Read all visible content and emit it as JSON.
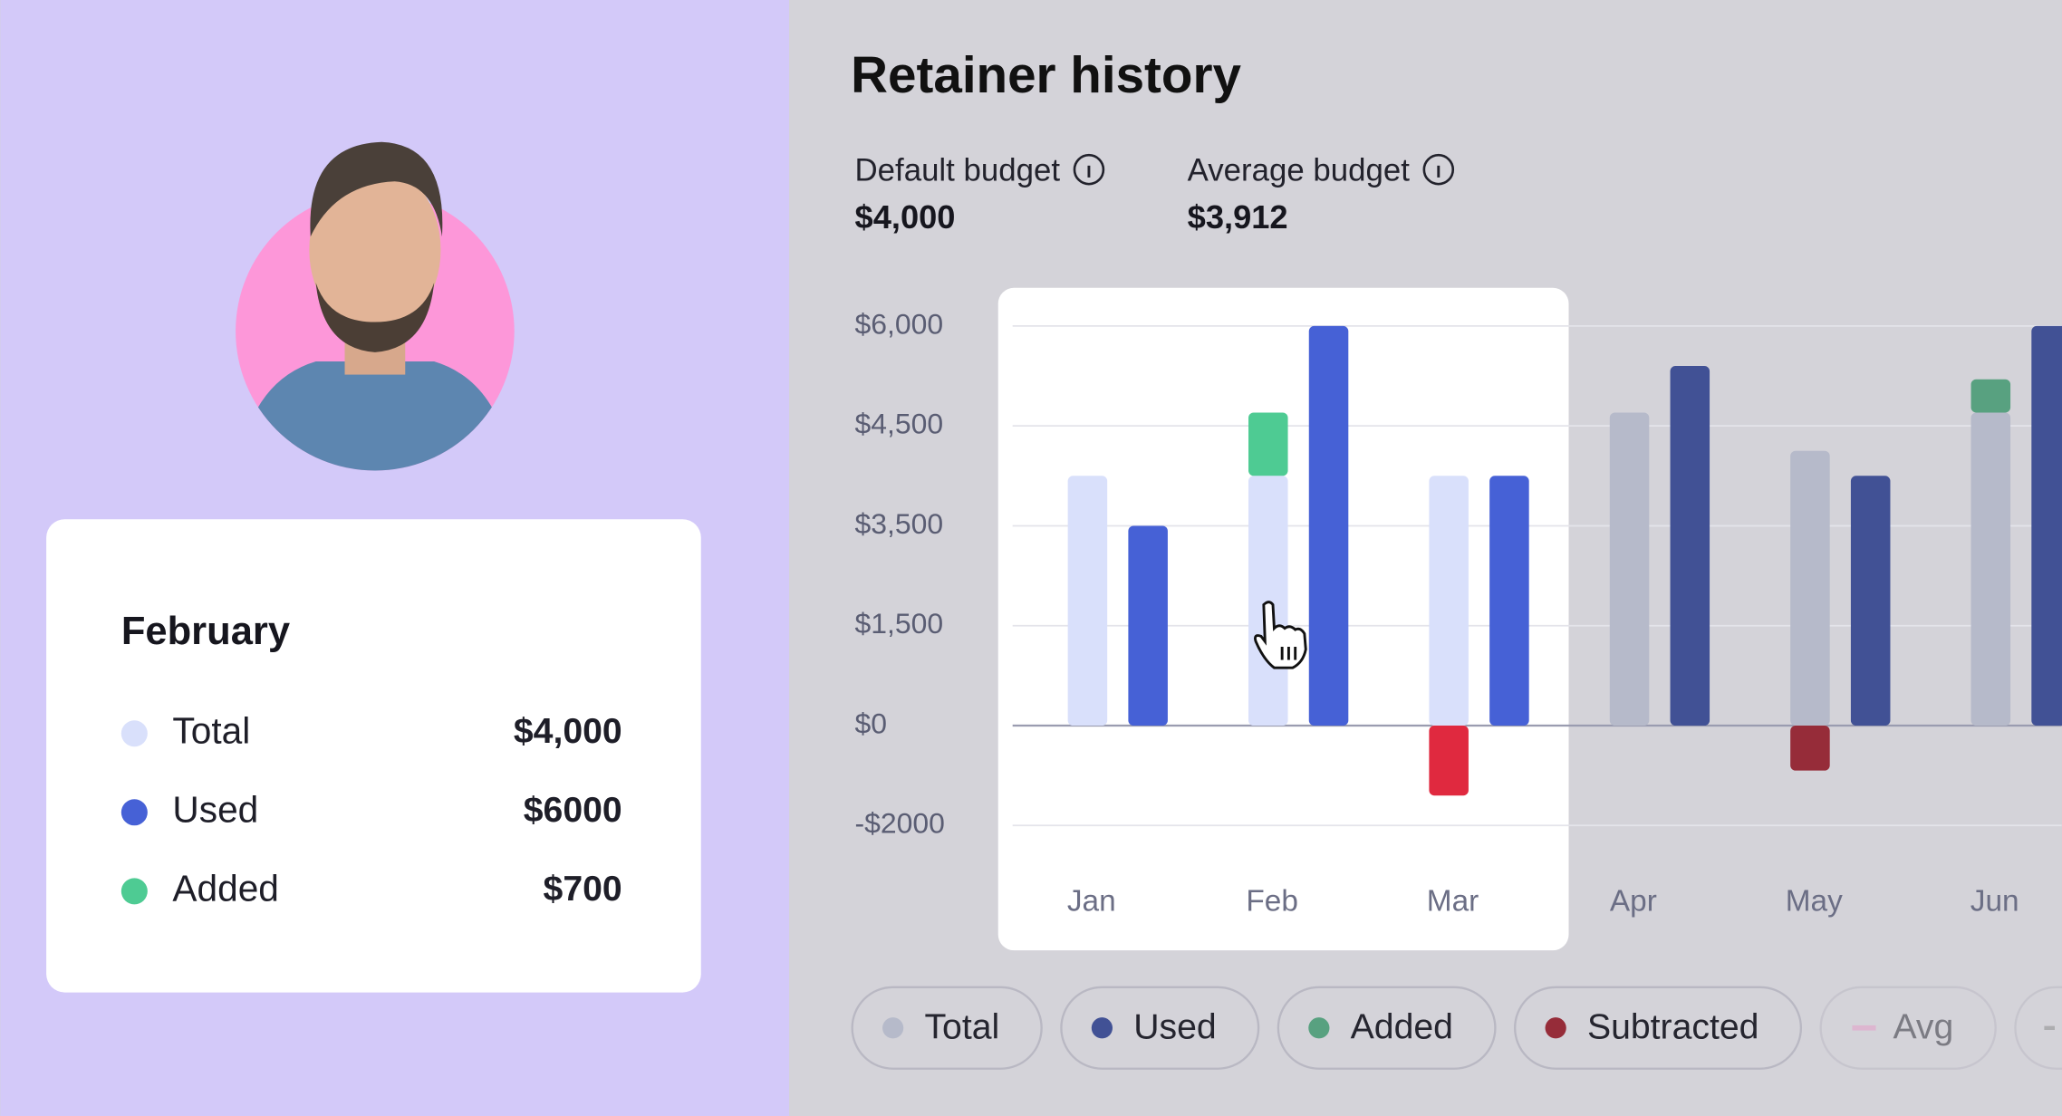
{
  "sidebar": {
    "card": {
      "title": "February",
      "rows": [
        {
          "label": "Total",
          "value": "$4,000"
        },
        {
          "label": "Used",
          "value": "$6000"
        },
        {
          "label": "Added",
          "value": "$700"
        }
      ]
    }
  },
  "header": {
    "title": "Retainer history",
    "stats": [
      {
        "label": "Default budget",
        "value": "$4,000"
      },
      {
        "label": "Average budget",
        "value": "$3,912"
      }
    ]
  },
  "chart_data": {
    "type": "bar",
    "categories": [
      "Jan",
      "Feb",
      "Mar",
      "Apr",
      "May",
      "Jun"
    ],
    "series": [
      {
        "name": "Total",
        "color": "#d9e0fb",
        "values": [
          4000,
          4000,
          4000,
          4700,
          4250,
          4700
        ]
      },
      {
        "name": "Used",
        "color": "#4661d6",
        "values": [
          3500,
          6000,
          4000,
          5400,
          4000,
          6000
        ]
      },
      {
        "name": "Added",
        "color": "#4ecb93",
        "values": [
          null,
          700,
          null,
          null,
          null,
          500
        ]
      },
      {
        "name": "Subtracted",
        "color": "#e0293f",
        "values": [
          null,
          null,
          -1400,
          null,
          -900,
          null
        ]
      }
    ],
    "ylim": [
      -2000,
      6000
    ],
    "yticks": [
      {
        "value": 6000,
        "label": "$6,000"
      },
      {
        "value": 4500,
        "label": "$4,500"
      },
      {
        "value": 3500,
        "label": "$3,500"
      },
      {
        "value": 1500,
        "label": "$1,500"
      },
      {
        "value": 0,
        "label": "$0"
      },
      {
        "value": -2000,
        "label": "-$2000"
      }
    ],
    "grid": true,
    "extra_legend": [
      {
        "name": "Avg",
        "color": "#e79bc9"
      }
    ]
  }
}
